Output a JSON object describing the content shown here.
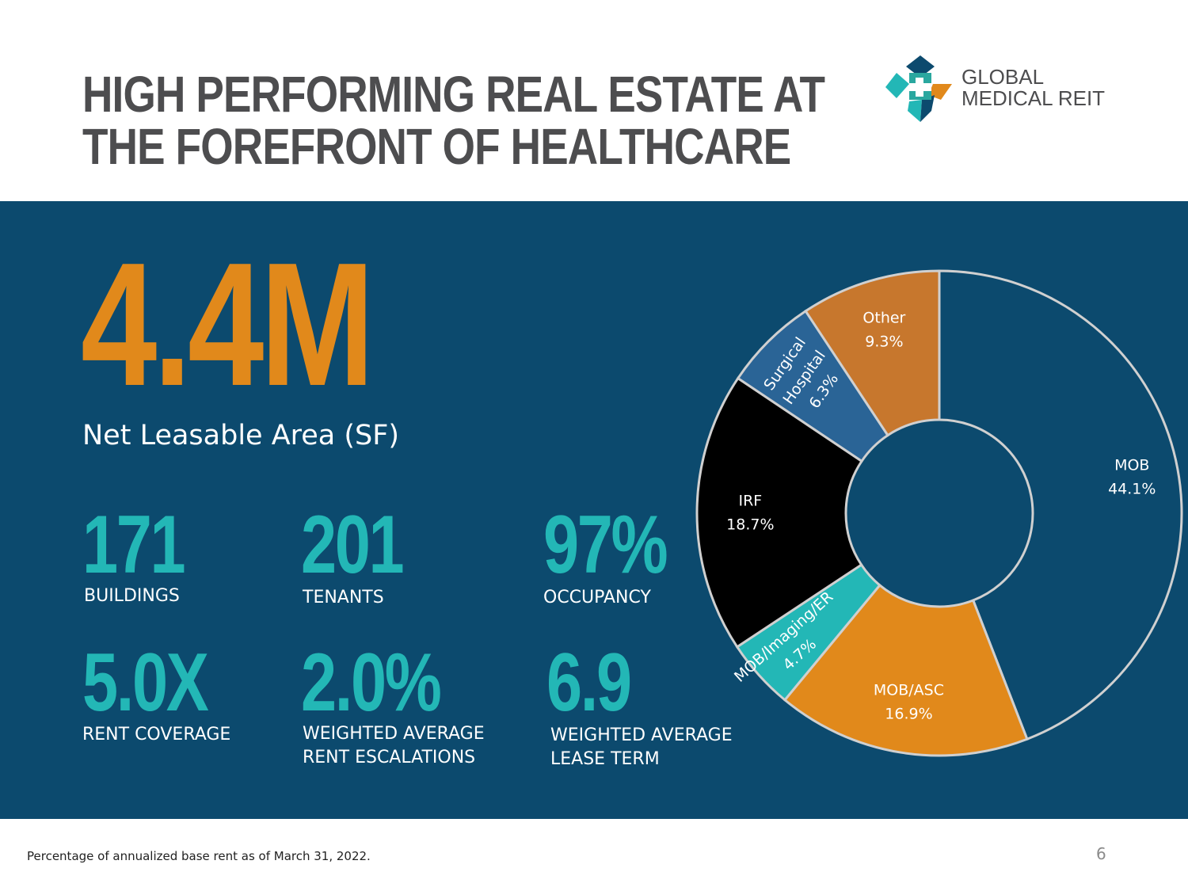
{
  "header": {
    "title_line1": "HIGH PERFORMING REAL ESTATE AT",
    "title_line2": "THE FOREFRONT OF HEALTHCARE",
    "logo_line1": "GLOBAL",
    "logo_line2": "MEDICAL REIT"
  },
  "hero": {
    "value": "4.4M",
    "label": "Net Leasable Area (SF)"
  },
  "stats": [
    {
      "value": "171",
      "label": "BUILDINGS"
    },
    {
      "value": "201",
      "label": "TENANTS"
    },
    {
      "value": "97%",
      "label": "OCCUPANCY"
    },
    {
      "value": "5.0X",
      "label": "RENT COVERAGE"
    },
    {
      "value": "2.0%",
      "label_line1": "WEIGHTED AVERAGE",
      "label_line2": "RENT ESCALATIONS"
    },
    {
      "value": "6.9",
      "label_line1": "WEIGHTED AVERAGE",
      "label_line2": "LEASE TERM"
    }
  ],
  "chart_data": {
    "type": "pie",
    "donut": true,
    "title": "",
    "slices": [
      {
        "label": "MOB",
        "value": 44.1,
        "display": "44.1%",
        "color": "#0c4a6e"
      },
      {
        "label": "MOB/ASC",
        "value": 16.9,
        "display": "16.9%",
        "color": "#e1891b"
      },
      {
        "label": "MOB/Imaging/ER",
        "value": 4.7,
        "display": "4.7%",
        "color": "#23b7b6"
      },
      {
        "label": "IRF",
        "value": 18.7,
        "display": "18.7%",
        "color": "#000000"
      },
      {
        "label": "Surgical Hospital",
        "value": 6.3,
        "display": "6.3%",
        "color": "#2a6496"
      },
      {
        "label": "Other",
        "value": 9.3,
        "display": "9.3%",
        "color": "#c7772d"
      }
    ]
  },
  "footer": {
    "note": "Percentage of annualized base rent as of March 31, 2022.",
    "page_number": "6"
  },
  "colors": {
    "panel_bg": "#0c4a6e",
    "accent_orange": "#e1891b",
    "accent_teal": "#23b7b6",
    "title_gray": "#4d4d4f"
  }
}
